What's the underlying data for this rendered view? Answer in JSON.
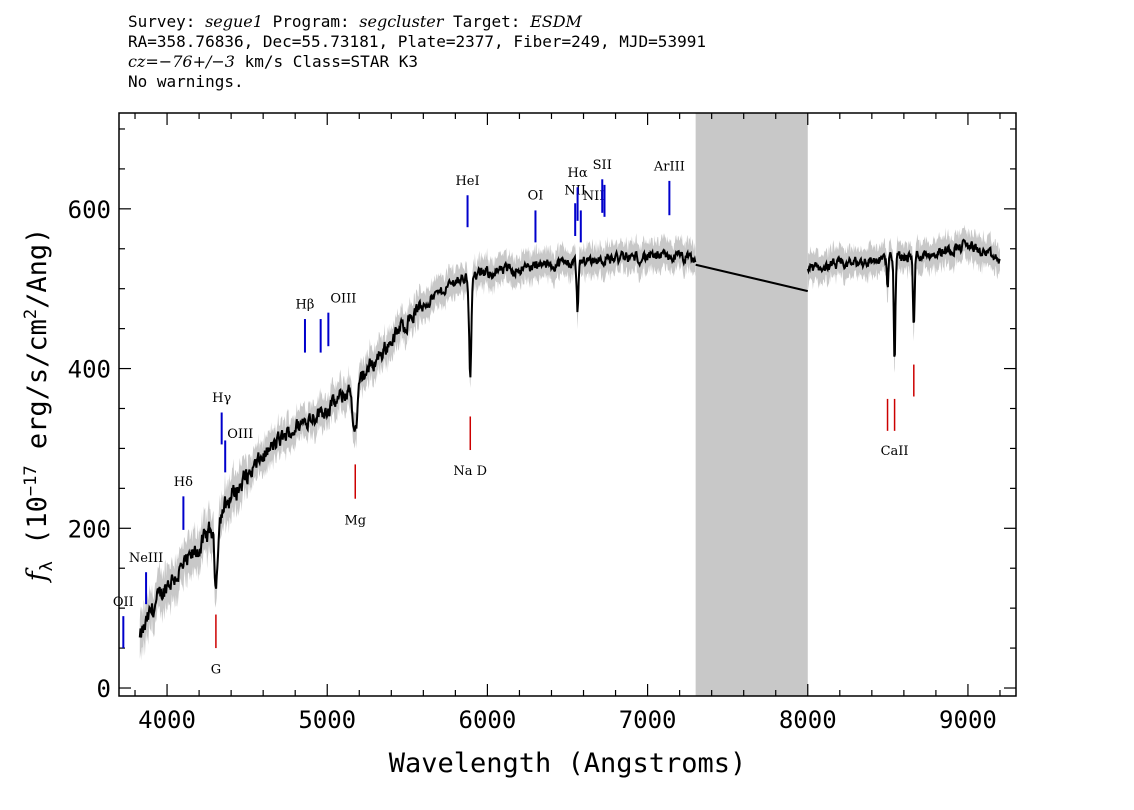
{
  "header": {
    "survey_label": "Survey:",
    "survey": "segue1",
    "program_label": "Program:",
    "program": "segcluster",
    "target_label": "Target:",
    "target": "ESDM",
    "line2": "RA=358.76836, Dec=55.73181, Plate=2377, Fiber=249, MJD=53991",
    "cz_label": "cz=",
    "cz_value": "−76+/−3",
    "cz_rest": " km/s Class=STAR K3",
    "line4": "No warnings."
  },
  "chart_data": {
    "type": "line",
    "title": "",
    "xlabel": "Wavelength (Angstroms)",
    "ylabel_main": "f",
    "ylabel_sub": "λ",
    "ylabel_rest1": " (10",
    "ylabel_exp": "−17",
    "ylabel_rest2": " erg/s/cm",
    "ylabel_exp2": "2",
    "ylabel_rest3": "/Ang)",
    "xlim": [
      3700,
      9300
    ],
    "ylim": [
      -10,
      720
    ],
    "x_ticks": [
      4000,
      5000,
      6000,
      7000,
      8000,
      9000
    ],
    "x_tick_labels": [
      "4000",
      "5000",
      "6000",
      "7000",
      "8000",
      "9000"
    ],
    "y_ticks": [
      0,
      200,
      400,
      600
    ],
    "y_tick_labels": [
      "0",
      "200",
      "400",
      "600"
    ],
    "gap_region": [
      7300,
      8000
    ],
    "continuum": [
      [
        3830,
        60
      ],
      [
        3900,
        95
      ],
      [
        4000,
        130
      ],
      [
        4100,
        150
      ],
      [
        4200,
        175
      ],
      [
        4300,
        205
      ],
      [
        4400,
        240
      ],
      [
        4500,
        265
      ],
      [
        4600,
        290
      ],
      [
        4700,
        310
      ],
      [
        4800,
        325
      ],
      [
        4900,
        340
      ],
      [
        5000,
        350
      ],
      [
        5100,
        365
      ],
      [
        5200,
        385
      ],
      [
        5300,
        410
      ],
      [
        5400,
        435
      ],
      [
        5500,
        460
      ],
      [
        5600,
        480
      ],
      [
        5700,
        495
      ],
      [
        5800,
        510
      ],
      [
        6000,
        520
      ],
      [
        6200,
        525
      ],
      [
        6400,
        530
      ],
      [
        6600,
        535
      ],
      [
        6800,
        538
      ],
      [
        7000,
        540
      ],
      [
        7200,
        540
      ],
      [
        7300,
        535
      ]
    ],
    "continuum_red": [
      [
        8000,
        525
      ],
      [
        8200,
        530
      ],
      [
        8400,
        535
      ],
      [
        8600,
        540
      ],
      [
        8800,
        545
      ],
      [
        9000,
        555
      ],
      [
        9200,
        535
      ]
    ],
    "absorptions": [
      {
        "x": 4305,
        "depth": 75,
        "width": 14
      },
      {
        "x": 5175,
        "depth": 60,
        "width": 20
      },
      {
        "x": 5893,
        "depth": 120,
        "width": 10
      },
      {
        "x": 6563,
        "depth": 60,
        "width": 8
      },
      {
        "x": 8498,
        "depth": 40,
        "width": 6
      },
      {
        "x": 8542,
        "depth": 130,
        "width": 7
      },
      {
        "x": 8662,
        "depth": 95,
        "width": 7
      }
    ],
    "gap_line": {
      "x": [
        7300,
        8000
      ],
      "y": [
        530,
        497
      ]
    },
    "emission_lines": [
      {
        "label": "OII",
        "x": 3727,
        "y1": 50,
        "y2": 90,
        "label_y": 103,
        "anchor": "middle"
      },
      {
        "label": "NeIII",
        "x": 3869,
        "y1": 105,
        "y2": 145,
        "label_y": 158,
        "anchor": "middle"
      },
      {
        "label": "Hδ",
        "x": 4102,
        "y1": 198,
        "y2": 240,
        "label_y": 253,
        "anchor": "middle"
      },
      {
        "label": "Hγ",
        "x": 4341,
        "y1": 305,
        "y2": 345,
        "label_y": 358,
        "anchor": "middle"
      },
      {
        "label": "OIII",
        "x": 4363,
        "y1": 270,
        "y2": 310,
        "label_y": 313,
        "anchor": "start"
      },
      {
        "label": "Hβ",
        "x": 4861,
        "y1": 420,
        "y2": 462,
        "label_y": 475,
        "anchor": "middle"
      },
      {
        "label": "OIII",
        "x": 4959,
        "y1": 420,
        "y2": 462,
        "label_y": 0,
        "anchor": "middle"
      },
      {
        "label": "OIII",
        "x": 5007,
        "y1": 428,
        "y2": 470,
        "label_y": 483,
        "anchor": "start"
      },
      {
        "label": "HeI",
        "x": 5876,
        "y1": 577,
        "y2": 617,
        "label_y": 630,
        "anchor": "middle"
      },
      {
        "label": "OI",
        "x": 6300,
        "y1": 558,
        "y2": 598,
        "label_y": 612,
        "anchor": "middle"
      },
      {
        "label": "NII",
        "x": 6548,
        "y1": 566,
        "y2": 607,
        "label_y": 618,
        "anchor": "middle"
      },
      {
        "label": "Hα",
        "x": 6563,
        "y1": 585,
        "y2": 627,
        "label_y": 640,
        "anchor": "middle"
      },
      {
        "label": "NII",
        "x": 6583,
        "y1": 558,
        "y2": 598,
        "label_y": 611,
        "anchor": "start"
      },
      {
        "label": "SII",
        "x": 6717,
        "y1": 595,
        "y2": 637,
        "label_y": 650,
        "anchor": "middle"
      },
      {
        "label": "SII",
        "x": 6731,
        "y1": 590,
        "y2": 630,
        "label_y": 0,
        "anchor": "middle"
      },
      {
        "label": "ArIII",
        "x": 7136,
        "y1": 592,
        "y2": 635,
        "label_y": 648,
        "anchor": "middle"
      }
    ],
    "absorption_lines": [
      {
        "label": "G",
        "x": 4305,
        "y1": 50,
        "y2": 92,
        "label_y": 18
      },
      {
        "label": "Mg",
        "x": 5175,
        "y1": 237,
        "y2": 280,
        "label_y": 205
      },
      {
        "label": "Na  D",
        "x": 5893,
        "y1": 298,
        "y2": 340,
        "label_y": 267
      },
      {
        "label": "CaII",
        "x": 8498,
        "y1": 322,
        "y2": 362,
        "label_y": 0
      },
      {
        "label": "CaII",
        "x": 8542,
        "y1": 322,
        "y2": 362,
        "label_y": 292
      },
      {
        "label": "CaII",
        "x": 8662,
        "y1": 365,
        "y2": 405,
        "label_y": 0
      }
    ],
    "colors": {
      "emission": "#0000cc",
      "absorption": "#cc0000",
      "error_band": "#c8c8c8",
      "gap": "#c8c8c8",
      "flux": "#000000"
    }
  }
}
